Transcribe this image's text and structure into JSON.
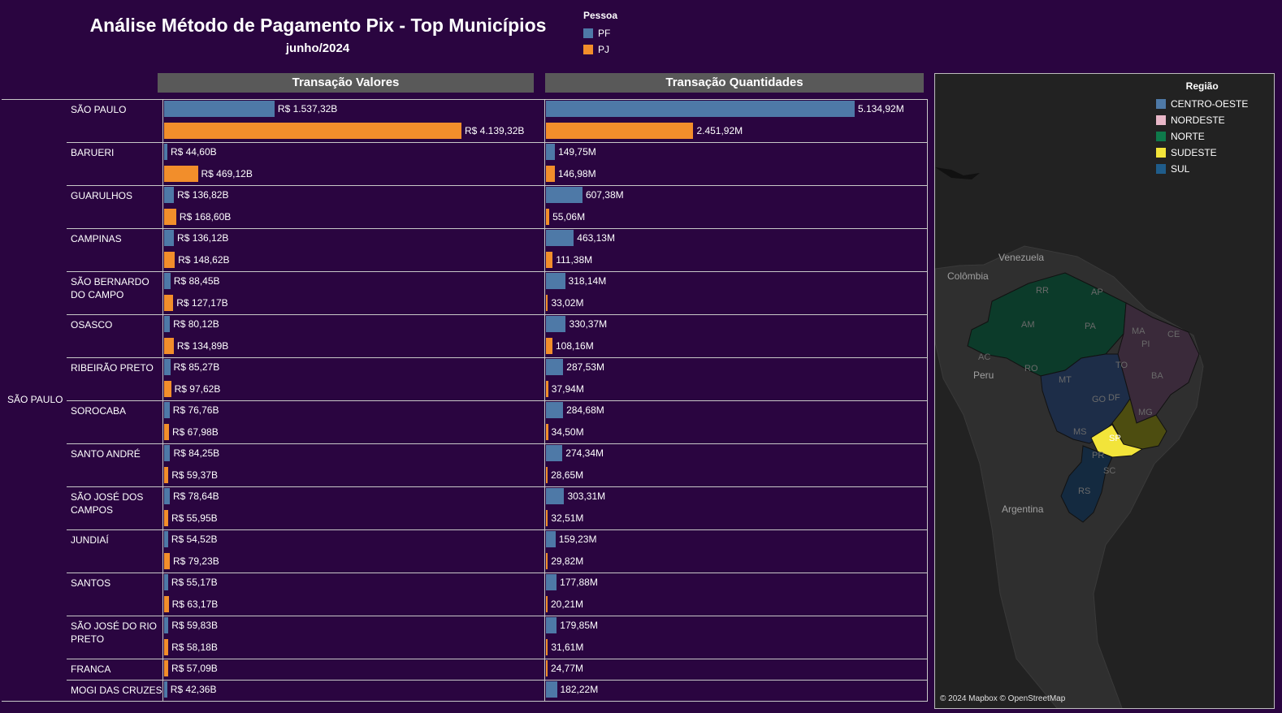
{
  "title": "Análise Método de Pagamento Pix - Top Municípios",
  "subtitle": "junho/2024",
  "legend": {
    "title": "Pessoa",
    "items": [
      {
        "label": "PF",
        "color": "#4e79a7"
      },
      {
        "label": "PJ",
        "color": "#f28e2b"
      }
    ]
  },
  "map": {
    "legend_title": "Região",
    "regions": [
      {
        "label": "CENTRO-OESTE",
        "color": "#4e79a7"
      },
      {
        "label": "NORDESTE",
        "color": "#e8b7c8"
      },
      {
        "label": "NORTE",
        "color": "#0e7a4b"
      },
      {
        "label": "SUDESTE",
        "color": "#f2e43a"
      },
      {
        "label": "SUL",
        "color": "#1f5c8a"
      }
    ],
    "country_labels": [
      "Venezuela",
      "Colômbia",
      "Peru",
      "Argentina"
    ],
    "state_labels": [
      "RR",
      "AP",
      "AM",
      "PA",
      "MA",
      "CE",
      "PI",
      "AC",
      "RO",
      "TO",
      "MT",
      "BA",
      "GO",
      "DF",
      "MG",
      "MS",
      "SP",
      "PR",
      "SC",
      "RS"
    ],
    "credit": "© 2024 Mapbox © OpenStreetMap"
  },
  "chart_data": {
    "type": "bar",
    "orientation": "horizontal",
    "state": "SÃO PAULO",
    "panels": [
      "Transação Valores",
      "Transação Quantidades"
    ],
    "series": [
      "PF",
      "PJ"
    ],
    "rows": [
      {
        "name": "SÃO PAULO",
        "valores": [
          1537.32,
          4139.32
        ],
        "valores_labels": [
          "R$ 1.537,32B",
          "R$ 4.139,32B"
        ],
        "qtd": [
          5134.92,
          2451.92
        ],
        "qtd_labels": [
          "5.134,92M",
          "2.451,92M"
        ]
      },
      {
        "name": "BARUERI",
        "valores": [
          44.6,
          469.12
        ],
        "valores_labels": [
          "R$ 44,60B",
          "R$ 469,12B"
        ],
        "qtd": [
          149.75,
          146.98
        ],
        "qtd_labels": [
          "149,75M",
          "146,98M"
        ]
      },
      {
        "name": "GUARULHOS",
        "valores": [
          136.82,
          168.6
        ],
        "valores_labels": [
          "R$ 136,82B",
          "R$ 168,60B"
        ],
        "qtd": [
          607.38,
          55.06
        ],
        "qtd_labels": [
          "607,38M",
          "55,06M"
        ]
      },
      {
        "name": "CAMPINAS",
        "valores": [
          136.12,
          148.62
        ],
        "valores_labels": [
          "R$ 136,12B",
          "R$ 148,62B"
        ],
        "qtd": [
          463.13,
          111.38
        ],
        "qtd_labels": [
          "463,13M",
          "111,38M"
        ]
      },
      {
        "name": "SÃO BERNARDO DO CAMPO",
        "valores": [
          88.45,
          127.17
        ],
        "valores_labels": [
          "R$ 88,45B",
          "R$ 127,17B"
        ],
        "qtd": [
          318.14,
          33.02
        ],
        "qtd_labels": [
          "318,14M",
          "33,02M"
        ]
      },
      {
        "name": "OSASCO",
        "valores": [
          80.12,
          134.89
        ],
        "valores_labels": [
          "R$ 80,12B",
          "R$ 134,89B"
        ],
        "qtd": [
          330.37,
          108.16
        ],
        "qtd_labels": [
          "330,37M",
          "108,16M"
        ]
      },
      {
        "name": "RIBEIRÃO PRETO",
        "valores": [
          85.27,
          97.62
        ],
        "valores_labels": [
          "R$ 85,27B",
          "R$ 97,62B"
        ],
        "qtd": [
          287.53,
          37.94
        ],
        "qtd_labels": [
          "287,53M",
          "37,94M"
        ]
      },
      {
        "name": "SOROCABA",
        "valores": [
          76.76,
          67.98
        ],
        "valores_labels": [
          "R$ 76,76B",
          "R$ 67,98B"
        ],
        "qtd": [
          284.68,
          34.5
        ],
        "qtd_labels": [
          "284,68M",
          "34,50M"
        ]
      },
      {
        "name": "SANTO ANDRÉ",
        "valores": [
          84.25,
          59.37
        ],
        "valores_labels": [
          "R$ 84,25B",
          "R$ 59,37B"
        ],
        "qtd": [
          274.34,
          28.65
        ],
        "qtd_labels": [
          "274,34M",
          "28,65M"
        ]
      },
      {
        "name": "SÃO JOSÉ DOS CAMPOS",
        "valores": [
          78.64,
          55.95
        ],
        "valores_labels": [
          "R$ 78,64B",
          "R$ 55,95B"
        ],
        "qtd": [
          303.31,
          32.51
        ],
        "qtd_labels": [
          "303,31M",
          "32,51M"
        ]
      },
      {
        "name": "JUNDIAÍ",
        "valores": [
          54.52,
          79.23
        ],
        "valores_labels": [
          "R$ 54,52B",
          "R$ 79,23B"
        ],
        "qtd": [
          159.23,
          29.82
        ],
        "qtd_labels": [
          "159,23M",
          "29,82M"
        ]
      },
      {
        "name": "SANTOS",
        "valores": [
          55.17,
          63.17
        ],
        "valores_labels": [
          "R$ 55,17B",
          "R$ 63,17B"
        ],
        "qtd": [
          177.88,
          20.21
        ],
        "qtd_labels": [
          "177,88M",
          "20,21M"
        ]
      },
      {
        "name": "SÃO JOSÉ DO RIO PRETO",
        "valores": [
          59.83,
          58.18
        ],
        "valores_labels": [
          "R$ 59,83B",
          "R$ 58,18B"
        ],
        "qtd": [
          179.85,
          31.61
        ],
        "qtd_labels": [
          "179,85M",
          "31,61M"
        ]
      },
      {
        "name": "FRANCA",
        "valores": [
          null,
          57.09
        ],
        "valores_labels": [
          null,
          "R$ 57,09B"
        ],
        "qtd": [
          null,
          24.77
        ],
        "qtd_labels": [
          null,
          "24,77M"
        ]
      },
      {
        "name": "MOGI DAS CRUZES",
        "valores": [
          42.36,
          null
        ],
        "valores_labels": [
          "R$ 42,36B",
          null
        ],
        "qtd": [
          182.22,
          null
        ],
        "qtd_labels": [
          "182,22M",
          null
        ]
      }
    ]
  }
}
